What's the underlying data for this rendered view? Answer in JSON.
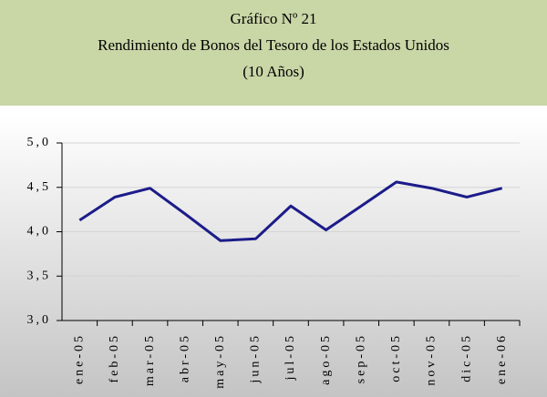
{
  "chart_data": {
    "type": "line",
    "title": "Gráfico Nº 21",
    "subtitle": [
      "Rendimiento de Bonos del Tesoro de los Estados Unidos",
      "(10 Años)"
    ],
    "categories": [
      "ene-05",
      "feb-05",
      "mar-05",
      "abr-05",
      "may-05",
      "jun-05",
      "jul-05",
      "ago-05",
      "sep-05",
      "oct-05",
      "nov-05",
      "dic-05",
      "ene-06"
    ],
    "series": [
      {
        "name": "Rendimiento",
        "color": "#1c1c8a",
        "values": [
          4.13,
          4.39,
          4.49,
          4.2,
          3.9,
          3.92,
          4.29,
          4.02,
          4.29,
          4.56,
          4.49,
          4.39,
          4.49
        ]
      }
    ],
    "ylim": [
      3,
      5
    ],
    "yticks": [
      {
        "value": 3,
        "label": "3,0"
      },
      {
        "value": 3.5,
        "label": "3,5"
      },
      {
        "value": 4,
        "label": "4,0"
      },
      {
        "value": 4.5,
        "label": "4,5"
      },
      {
        "value": 5,
        "label": "5,0"
      }
    ],
    "grid": true
  }
}
